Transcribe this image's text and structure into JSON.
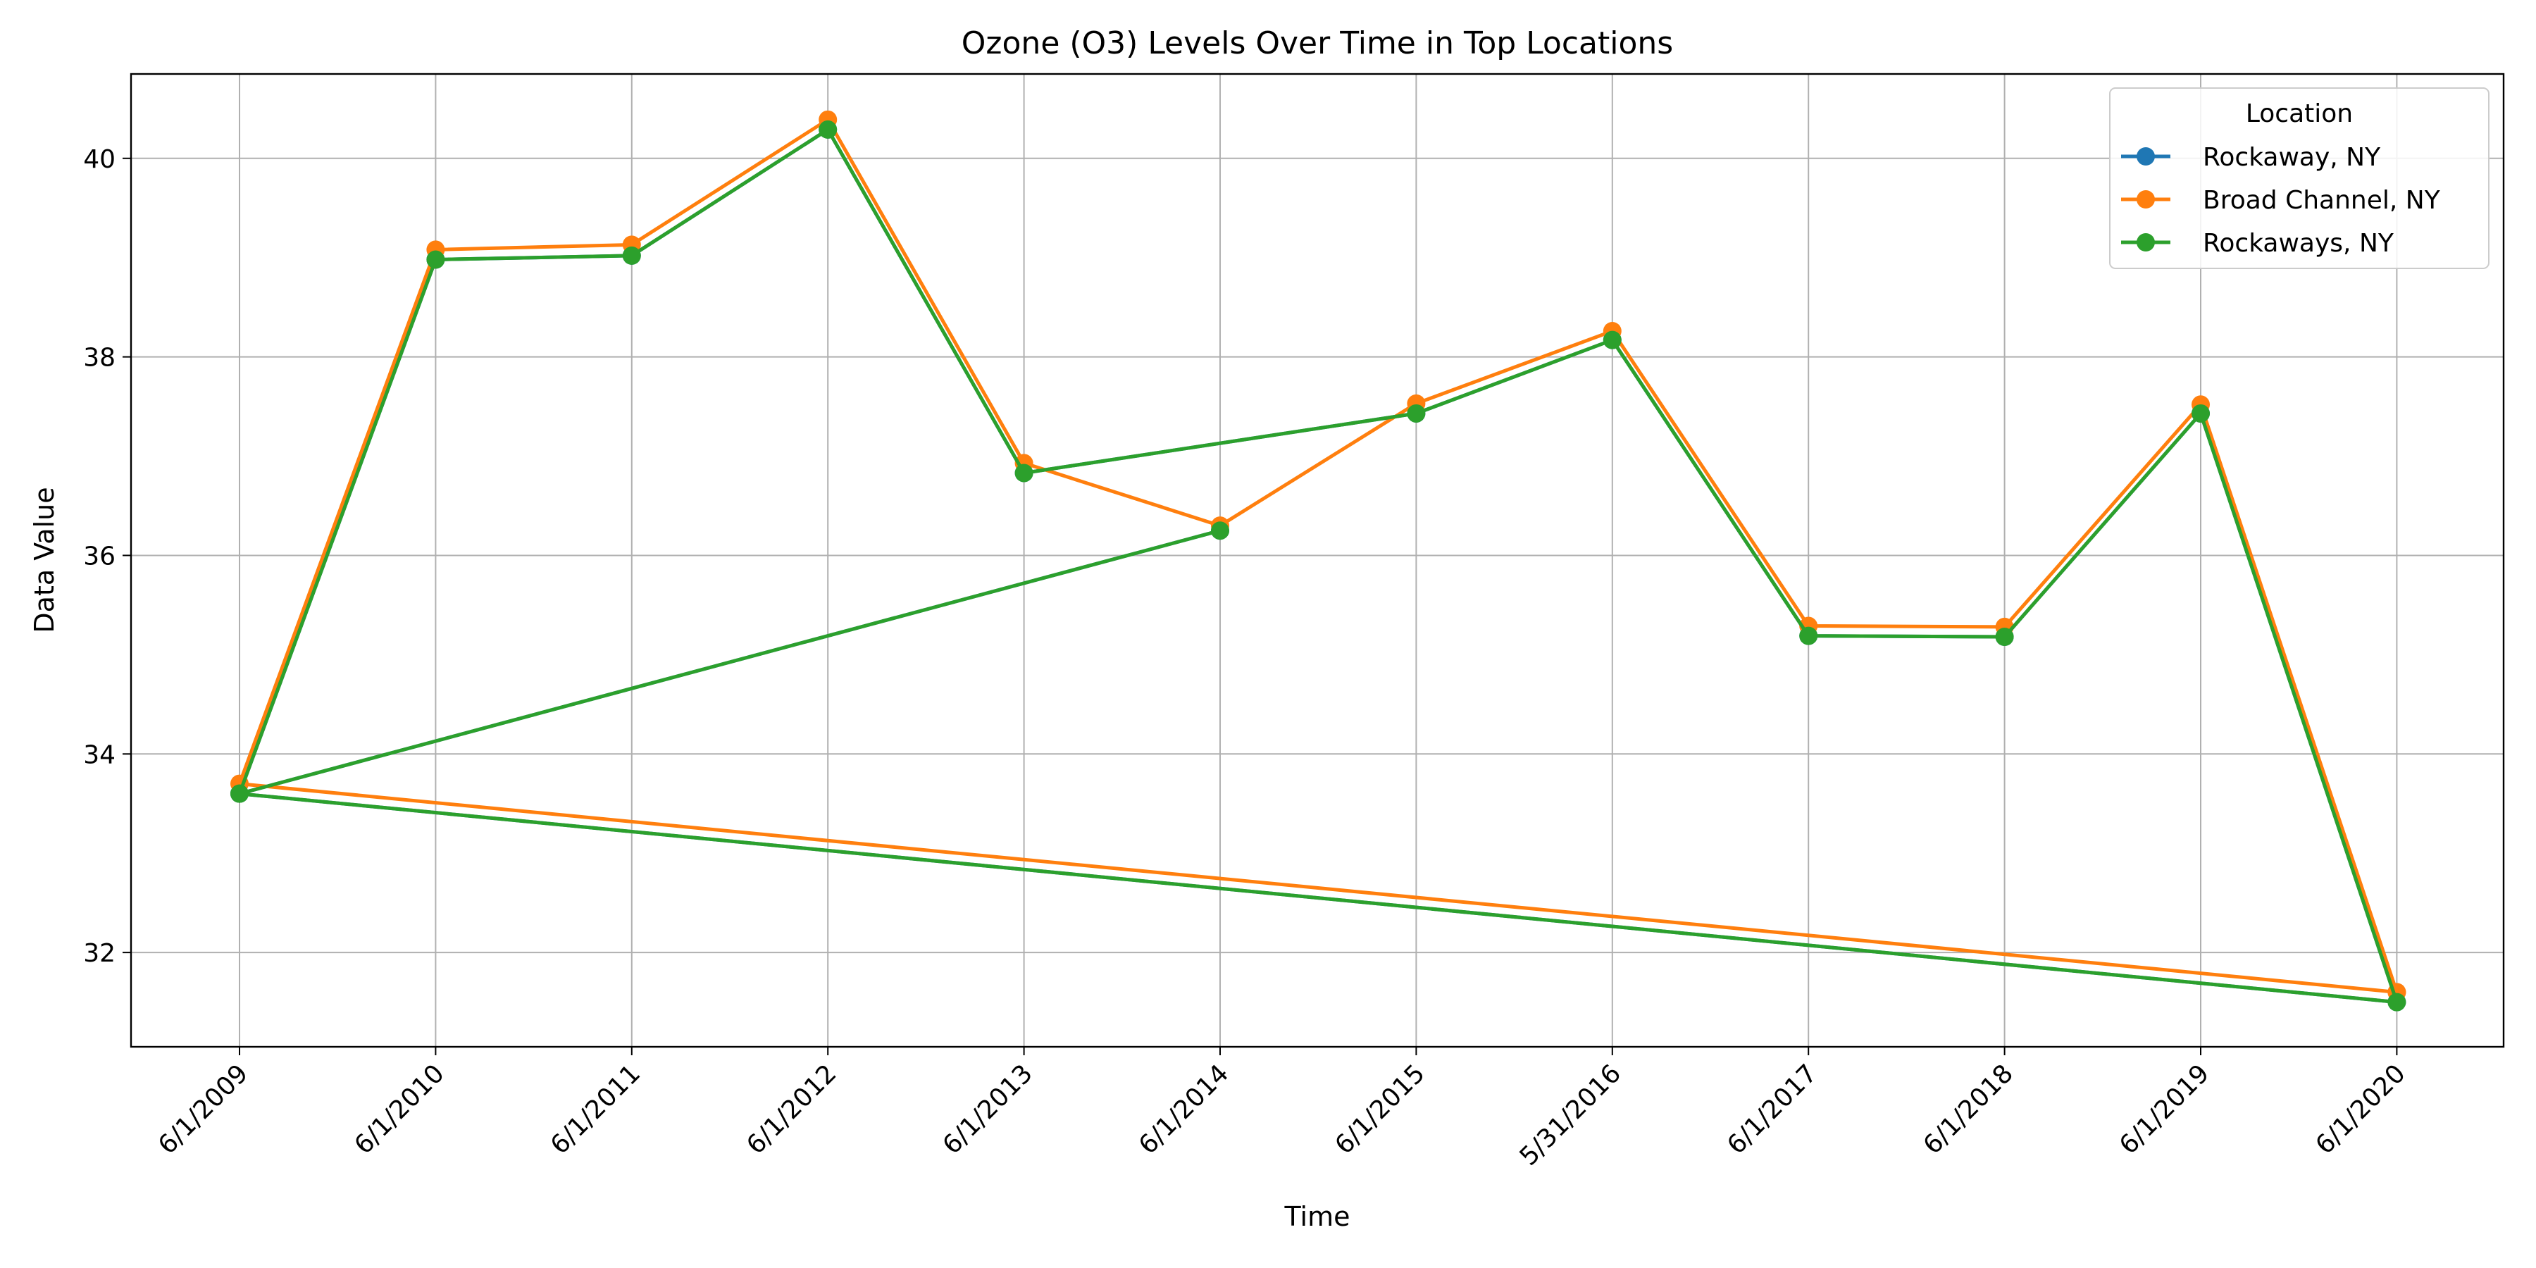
{
  "chart_data": {
    "type": "line",
    "title": "Ozone (O3) Levels Over Time in Top Locations",
    "xlabel": "Time",
    "ylabel": "Data Value",
    "categories": [
      "6/1/2009",
      "6/1/2010",
      "6/1/2011",
      "6/1/2012",
      "6/1/2013",
      "6/1/2014",
      "6/1/2015",
      "5/31/2016",
      "6/1/2017",
      "6/1/2018",
      "6/1/2019",
      "6/1/2020"
    ],
    "yticks": [
      32,
      34,
      36,
      38,
      40
    ],
    "ylim": [
      31.05,
      40.85
    ],
    "grid": true,
    "legend": {
      "title": "Location",
      "position": "top-right"
    },
    "series": [
      {
        "name": "Rockaway, NY",
        "color": "#1f77b4",
        "points": [
          {
            "x": "6/1/2014",
            "y": 36.25
          },
          {
            "x": "6/1/2009",
            "y": 33.6
          },
          {
            "x": "6/1/2020",
            "y": 31.5
          },
          {
            "x": "6/1/2019",
            "y": 37.43
          },
          {
            "x": "6/1/2018",
            "y": 35.18
          },
          {
            "x": "6/1/2017",
            "y": 35.19
          },
          {
            "x": "5/31/2016",
            "y": 38.17
          },
          {
            "x": "6/1/2015",
            "y": 37.43
          },
          {
            "x": "6/1/2013",
            "y": 36.83
          },
          {
            "x": "6/1/2012",
            "y": 40.29
          },
          {
            "x": "6/1/2011",
            "y": 39.02
          },
          {
            "x": "6/1/2010",
            "y": 38.98
          },
          {
            "x": "6/1/2009",
            "y": 33.6
          }
        ]
      },
      {
        "name": "Broad Channel, NY",
        "color": "#ff7f0e",
        "points": [
          {
            "x": "6/1/2020",
            "y": 31.6
          },
          {
            "x": "6/1/2019",
            "y": 37.52
          },
          {
            "x": "6/1/2018",
            "y": 35.28
          },
          {
            "x": "6/1/2017",
            "y": 35.29
          },
          {
            "x": "5/31/2016",
            "y": 38.26
          },
          {
            "x": "6/1/2015",
            "y": 37.53
          },
          {
            "x": "6/1/2014",
            "y": 36.3
          },
          {
            "x": "6/1/2013",
            "y": 36.93
          },
          {
            "x": "6/1/2012",
            "y": 40.39
          },
          {
            "x": "6/1/2011",
            "y": 39.13
          },
          {
            "x": "6/1/2010",
            "y": 39.08
          },
          {
            "x": "6/1/2009",
            "y": 33.7
          },
          {
            "x": "6/1/2020",
            "y": 31.6
          }
        ]
      },
      {
        "name": "Rockaways, NY",
        "color": "#2ca02c",
        "points": [
          {
            "x": "6/1/2014",
            "y": 36.25
          },
          {
            "x": "6/1/2009",
            "y": 33.6
          },
          {
            "x": "6/1/2020",
            "y": 31.5
          },
          {
            "x": "6/1/2019",
            "y": 37.43
          },
          {
            "x": "6/1/2018",
            "y": 35.18
          },
          {
            "x": "6/1/2017",
            "y": 35.19
          },
          {
            "x": "5/31/2016",
            "y": 38.17
          },
          {
            "x": "6/1/2015",
            "y": 37.43
          },
          {
            "x": "6/1/2013",
            "y": 36.83
          },
          {
            "x": "6/1/2012",
            "y": 40.29
          },
          {
            "x": "6/1/2011",
            "y": 39.02
          },
          {
            "x": "6/1/2010",
            "y": 38.98
          },
          {
            "x": "6/1/2009",
            "y": 33.6
          }
        ]
      }
    ]
  }
}
